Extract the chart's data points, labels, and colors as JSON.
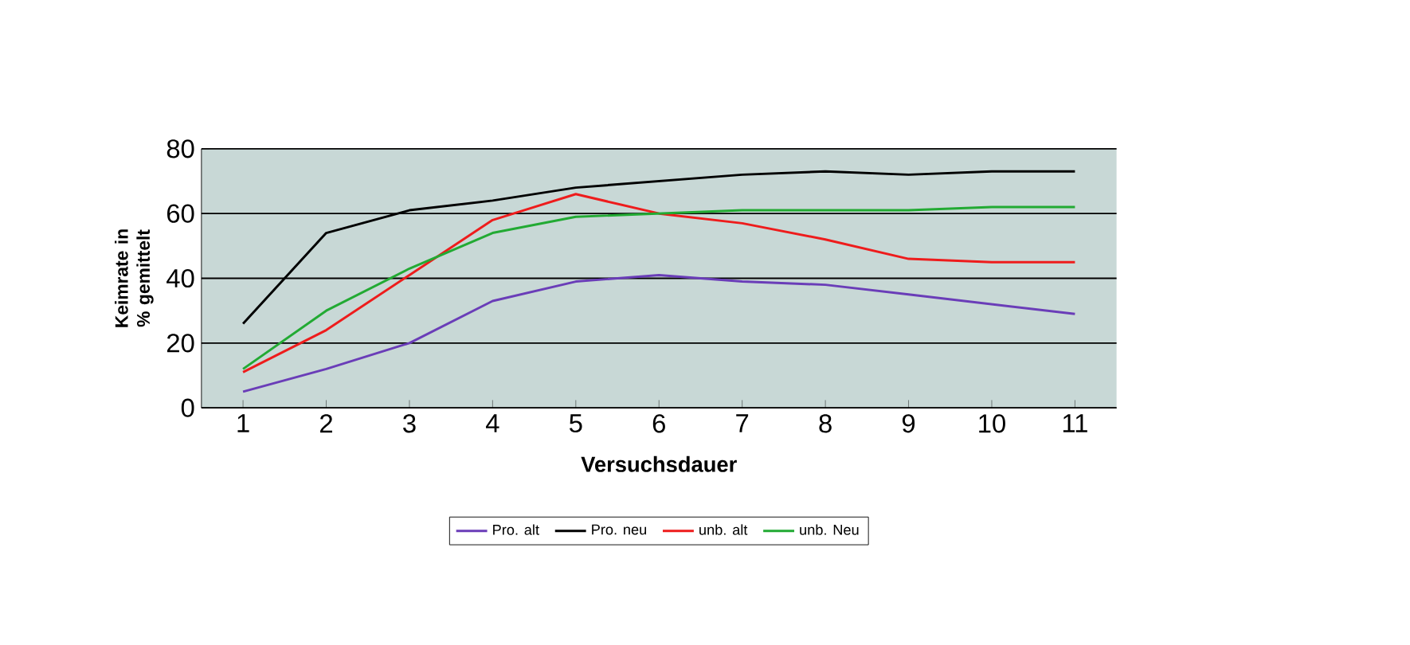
{
  "chart_data": {
    "type": "line",
    "xlabel": "Versuchsdauer",
    "ylabel": "Keimrate in % gemittelt",
    "categories": [
      "1",
      "2",
      "3",
      "4",
      "5",
      "6",
      "7",
      "8",
      "9",
      "10",
      "11"
    ],
    "series": [
      {
        "name": "Pro. alt",
        "color": "#6a3db8",
        "values": [
          5,
          12,
          20,
          33,
          39,
          41,
          39,
          38,
          35,
          32,
          29
        ]
      },
      {
        "name": "Pro. neu",
        "color": "#000000",
        "values": [
          26,
          54,
          61,
          64,
          68,
          70,
          72,
          73,
          72,
          73,
          73
        ]
      },
      {
        "name": "unb. alt",
        "color": "#ee1c1c",
        "values": [
          11,
          24,
          41,
          58,
          66,
          60,
          57,
          52,
          46,
          45,
          45
        ]
      },
      {
        "name": "unb. Neu",
        "color": "#22aa33",
        "values": [
          12,
          30,
          43,
          54,
          59,
          60,
          61,
          61,
          61,
          62,
          62
        ]
      }
    ],
    "ylim": [
      0,
      80
    ],
    "yticks": [
      0,
      20,
      40,
      60,
      80
    ],
    "grid": "y",
    "legend": "bottom",
    "marker": "none",
    "line_style": "solid"
  }
}
